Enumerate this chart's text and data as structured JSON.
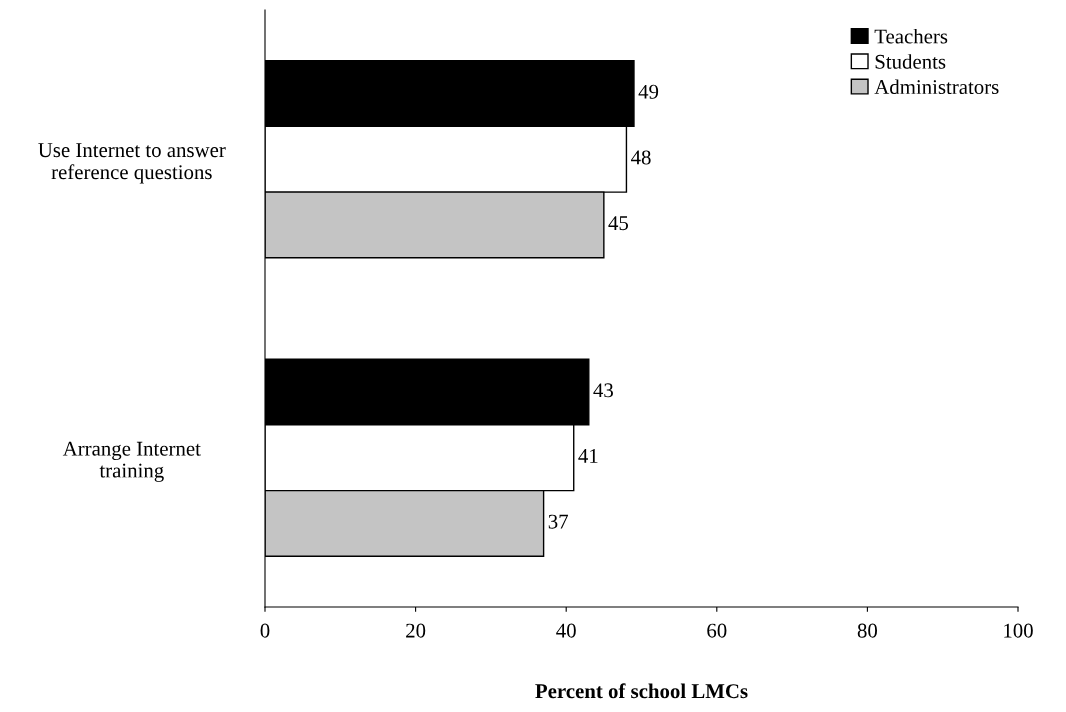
{
  "chart_data": {
    "type": "bar",
    "orientation": "horizontal",
    "xlabel": "Percent of school LMCs",
    "categories": [
      "Use Internet to answer\nreference questions",
      "Arrange Internet\ntraining"
    ],
    "series": [
      {
        "name": "Teachers",
        "color": "#000000",
        "values": [
          49,
          43
        ]
      },
      {
        "name": "Students",
        "color": "#ffffff",
        "values": [
          48,
          41
        ]
      },
      {
        "name": "Administrators",
        "color": "#c4c4c4",
        "values": [
          45,
          37
        ]
      }
    ],
    "xlim": [
      0,
      100
    ],
    "xticks": [
      0,
      20,
      40,
      60,
      80,
      100
    ],
    "data_labels": true,
    "legend": "top right",
    "grid": false
  }
}
